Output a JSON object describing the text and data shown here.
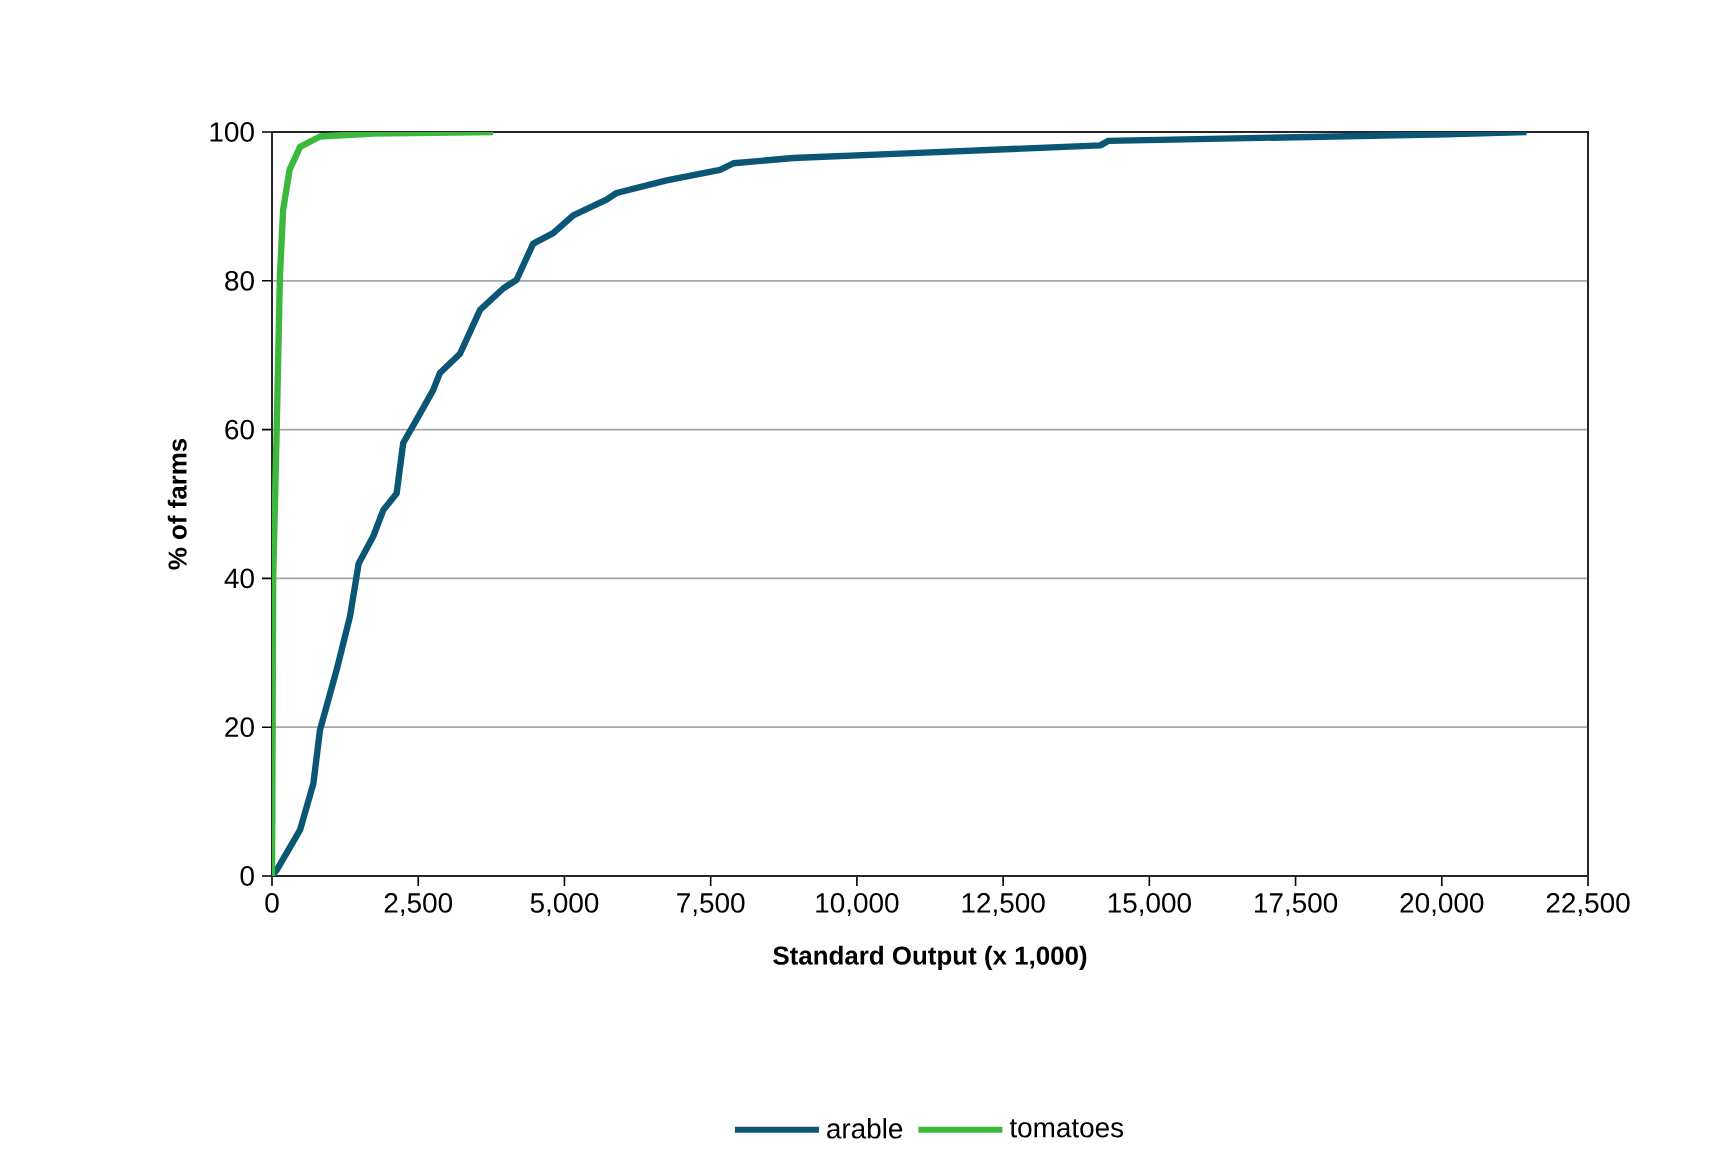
{
  "chart_data": {
    "type": "line",
    "xlabel": "Standard Output (x 1,000)",
    "ylabel": "% of farms",
    "xlim": [
      0,
      22500
    ],
    "ylim": [
      0,
      100
    ],
    "xticks": [
      0,
      {
        "value": 2500,
        "label": "2,500"
      },
      {
        "value": 5000,
        "label": "5,000"
      },
      {
        "value": 7500,
        "label": "7,500"
      },
      {
        "value": 10000,
        "label": "10,000"
      },
      {
        "value": 12500,
        "label": "12,500"
      },
      {
        "value": 15000,
        "label": "15,000"
      },
      {
        "value": 17500,
        "label": "17,500"
      },
      {
        "value": 20000,
        "label": "20,000"
      },
      {
        "value": 22500,
        "label": "22,500"
      }
    ],
    "yticks": [
      0,
      20,
      40,
      60,
      80,
      100
    ],
    "grid": "y",
    "legend": "bottom",
    "marker": "none",
    "line_style": "solid",
    "series": [
      {
        "name": "arable",
        "color": "#0b5575",
        "x": [
          0,
          80,
          480,
          707,
          820,
          1105,
          1334,
          1482,
          1733,
          1904,
          2130,
          2243,
          2470,
          2755,
          2870,
          3215,
          3557,
          3957,
          4180,
          4465,
          4808,
          5150,
          5720,
          5890,
          6747,
          7660,
          7890,
          8910,
          10740,
          14160,
          14300,
          20080,
          21450
        ],
        "values": [
          0,
          0.8,
          6.2,
          12.4,
          19.6,
          27.7,
          34.9,
          42,
          45.7,
          49.2,
          51.4,
          58.2,
          61.3,
          65.3,
          67.6,
          70.2,
          76.1,
          79,
          80.1,
          85,
          86.4,
          88.8,
          90.9,
          91.8,
          93.5,
          94.9,
          95.8,
          96.5,
          97.1,
          98.2,
          98.8,
          99.7,
          100
        ]
      },
      {
        "name": "tomatoes",
        "color": "#3cb83c",
        "x": [
          0,
          20,
          80,
          135,
          190,
          300,
          480,
          820,
          1730,
          3780
        ],
        "values": [
          0,
          40,
          60,
          80.6,
          89.5,
          94.9,
          98,
          99.4,
          99.8,
          100
        ]
      }
    ]
  }
}
